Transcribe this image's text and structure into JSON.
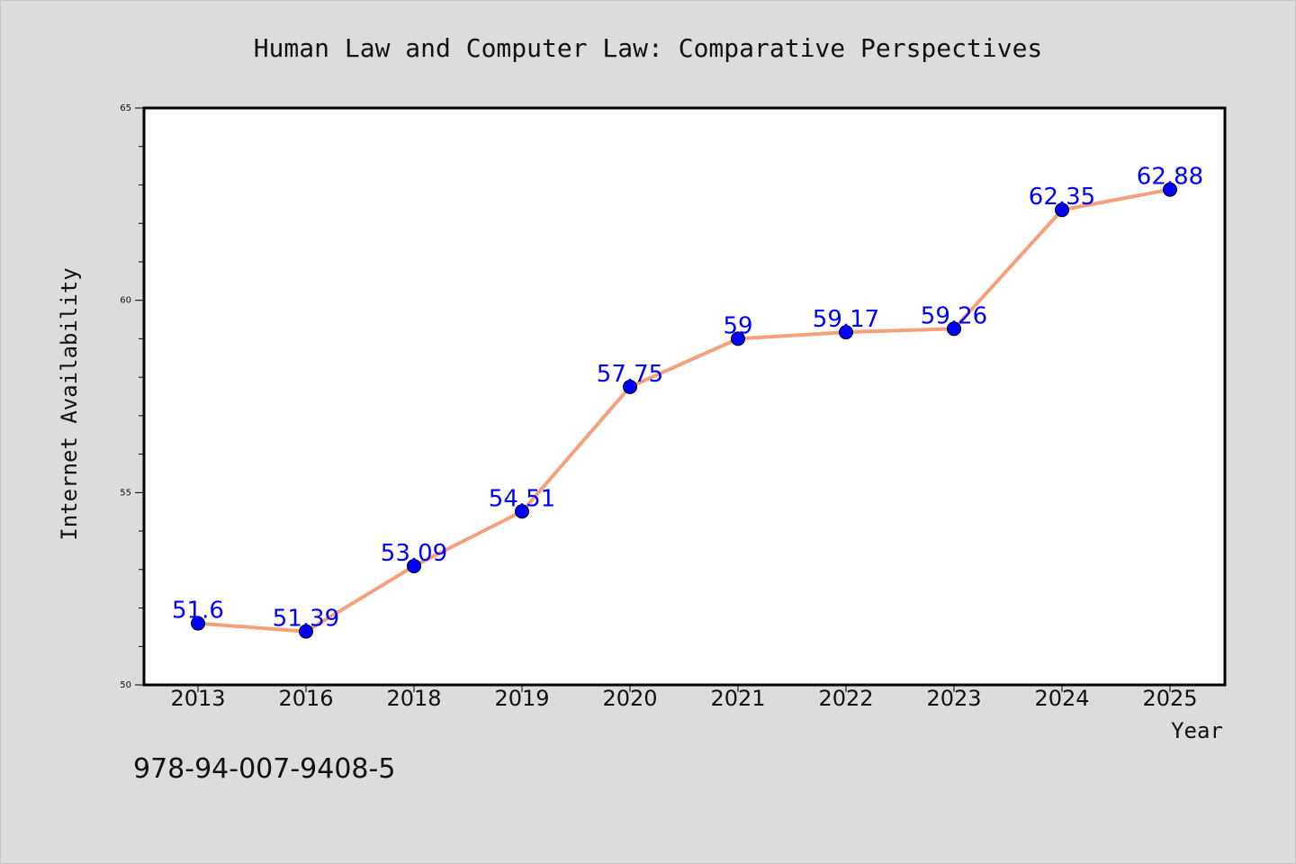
{
  "chart_data": {
    "type": "line",
    "title": "Human Law and Computer Law: Comparative Perspectives",
    "xlabel": "Year",
    "ylabel": "Internet Availability",
    "categories": [
      "2013",
      "2016",
      "2018",
      "2019",
      "2020",
      "2021",
      "2022",
      "2023",
      "2024",
      "2025"
    ],
    "series": [
      {
        "values": [
          51.6,
          51.39,
          53.09,
          54.51,
          57.75,
          59,
          59.17,
          59.26,
          62.35,
          62.88
        ],
        "data_labels": [
          "51.6",
          "51.39",
          "53.09",
          "54.51",
          "57.75",
          "59",
          "59.17",
          "59.26",
          "62.35",
          "62.88"
        ]
      }
    ],
    "ylim": [
      50,
      65
    ],
    "yticks": [
      "50",
      "55",
      "60",
      "65"
    ],
    "grid": false,
    "legend": "none",
    "colors": {
      "line": "#f4a07a",
      "marker": "#0000ff",
      "label": "#0000ff",
      "background": "#dcdcdc",
      "plot_background": "#ffffff"
    },
    "annotation": "978-94-007-9408-5"
  }
}
